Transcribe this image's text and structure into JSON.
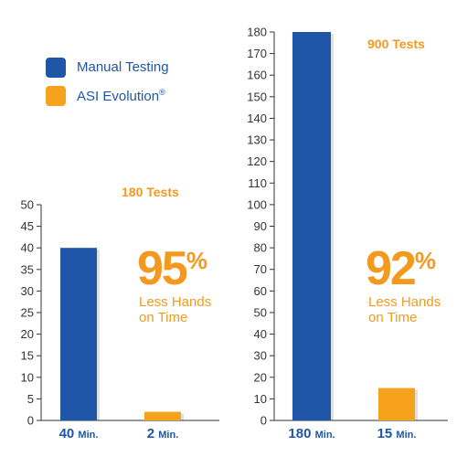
{
  "colors": {
    "manual": "#1f56a8",
    "asi": "#f7a21c",
    "accent_text": "#f39a1e",
    "axis": "#333333",
    "grid": "#cccccc"
  },
  "legend": {
    "manual_label": "Manual Testing",
    "asi_label": "ASI Evolution",
    "asi_mark": "®"
  },
  "chart_data": [
    {
      "type": "bar",
      "title": "180 Tests",
      "categories": [
        "40 Min.",
        "2 Min."
      ],
      "category_parts": [
        [
          "40",
          "Min."
        ],
        [
          "2",
          "Min."
        ]
      ],
      "values": [
        40,
        2
      ],
      "colors": [
        "#1f56a8",
        "#f7a21c"
      ],
      "ylim": [
        0,
        50
      ],
      "yticks": [
        0,
        5,
        10,
        15,
        20,
        25,
        30,
        35,
        40,
        45,
        50
      ],
      "callout": {
        "percent": "95",
        "symbol": "%",
        "line1": "Less Hands",
        "line2": "on Time"
      }
    },
    {
      "type": "bar",
      "title": "900 Tests",
      "categories": [
        "180 Min.",
        "15 Min."
      ],
      "category_parts": [
        [
          "180",
          "Min."
        ],
        [
          "15",
          "Min."
        ]
      ],
      "values": [
        180,
        15
      ],
      "colors": [
        "#1f56a8",
        "#f7a21c"
      ],
      "ylim": [
        0,
        180
      ],
      "yticks": [
        0,
        10,
        20,
        30,
        40,
        50,
        60,
        70,
        80,
        90,
        100,
        110,
        120,
        130,
        140,
        150,
        160,
        170,
        180
      ],
      "callout": {
        "percent": "92",
        "symbol": "%",
        "line1": "Less Hands",
        "line2": "on Time"
      }
    }
  ]
}
